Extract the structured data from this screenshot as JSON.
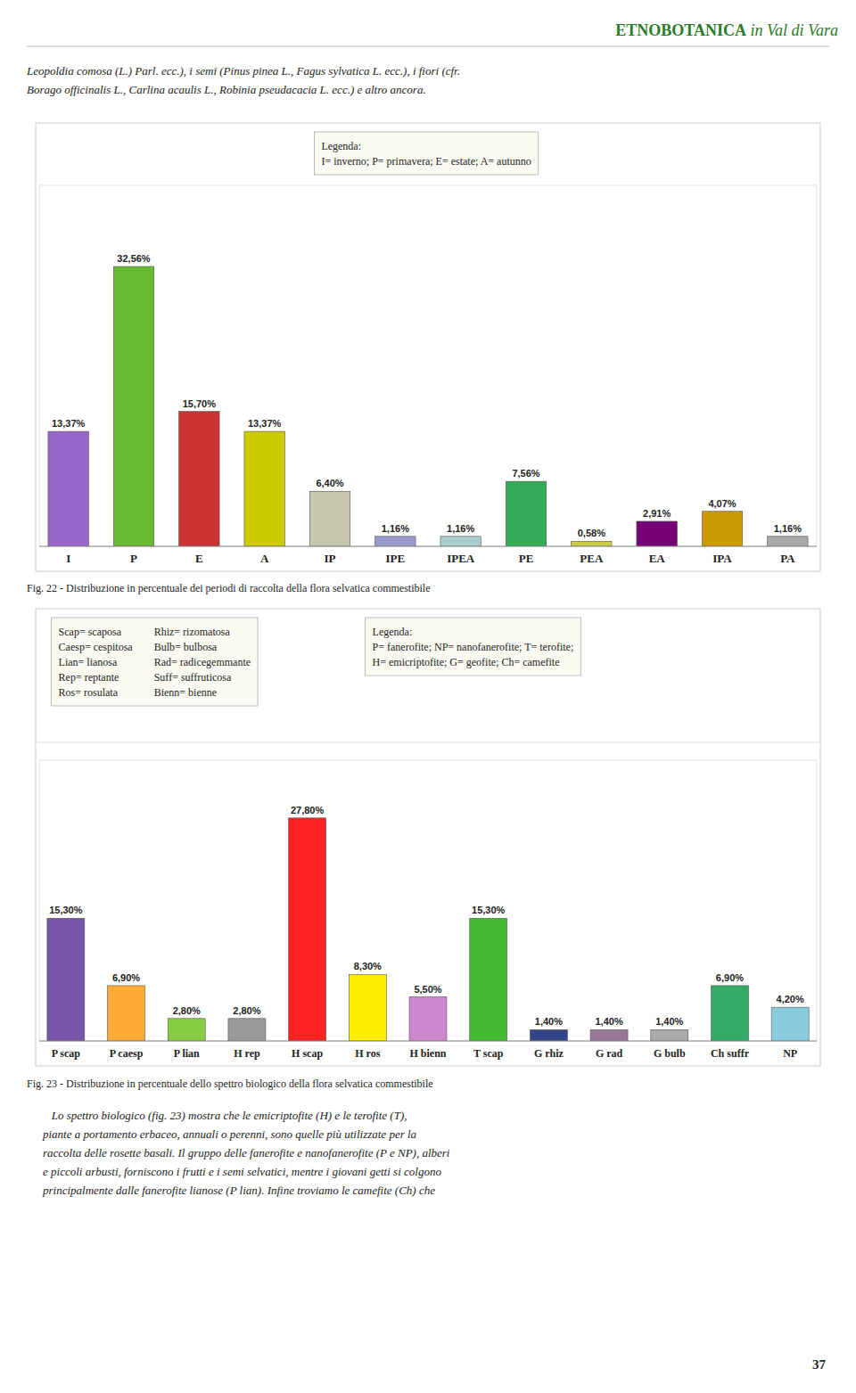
{
  "header": {
    "bold": "ETNOBOTANICA",
    "italic": " in Val di Vara"
  },
  "body_text_1": [
    "Leopoldia comosa (L.) Parl. ecc.), i semi (Pinus pinea L., Fagus sylvatica L. ecc.), i fiori (cfr.",
    "Borago officinalis L., Carlina acaulis L., Robinia pseudacacia L. ecc.) e altro ancora."
  ],
  "chart_data": [
    {
      "type": "bar",
      "title": "Fig. 22 - Distribuzione in percentuale dei periodi di raccolta della flora selvatica commestibile",
      "categories": [
        "I",
        "P",
        "E",
        "A",
        "IP",
        "IPE",
        "IPEA",
        "PE",
        "PEA",
        "EA",
        "IPA",
        "PA"
      ],
      "values": [
        13.37,
        32.56,
        15.7,
        13.37,
        6.4,
        1.16,
        1.16,
        7.56,
        0.58,
        2.91,
        4.07,
        1.16
      ],
      "value_labels": [
        "13,37%",
        "32,56%",
        "15,70%",
        "13,37%",
        "6,40%",
        "1,16%",
        "1,16%",
        "7,56%",
        "0,58%",
        "2,91%",
        "4,07%",
        "1,16%"
      ],
      "colors": [
        "#9966cc",
        "#66bb33",
        "#cc3333",
        "#cccc00",
        "#c8c8b0",
        "#9999cc",
        "#aacccc",
        "#33aa55",
        "#cccc44",
        "#770077",
        "#cc9900",
        "#aaaaaa"
      ],
      "ylim": [
        0,
        42
      ],
      "data_labels": true,
      "tick_labels": "x",
      "grid": false,
      "annotations": [
        [
          [
            "Legenda:"
          ],
          [
            "I= inverno; P= primavera; E= estate; A= autunno"
          ]
        ]
      ]
    },
    {
      "type": "bar",
      "title": "Fig. 23 - Distribuzione in percentuale dello spettro biologico della flora selvatica commestibile",
      "categories": [
        "P scap",
        "P caesp",
        "P lian",
        "H rep",
        "H scap",
        "H ros",
        "H bienn",
        "T scap",
        "G rhiz",
        "G rad",
        "G bulb",
        "Ch suffr",
        "NP"
      ],
      "values": [
        15.3,
        6.9,
        2.8,
        2.8,
        27.8,
        8.3,
        5.5,
        15.3,
        1.4,
        1.4,
        1.4,
        6.9,
        4.2
      ],
      "value_labels": [
        "15,30%",
        "6,90%",
        "2,80%",
        "2,80%",
        "27,80%",
        "8,30%",
        "5,50%",
        "15,30%",
        "1,40%",
        "1,40%",
        "1,40%",
        "6,90%",
        "4,20%"
      ],
      "colors": [
        "#7755aa",
        "#ffaa33",
        "#88cc44",
        "#999999",
        "#ff2222",
        "#ffee00",
        "#cc88cc",
        "#44bb33",
        "#334488",
        "#997799",
        "#aaaaaa",
        "#33aa66",
        "#88ccdd"
      ],
      "ylim": [
        0,
        35
      ],
      "data_labels": true,
      "tick_labels": "x",
      "grid": false,
      "annotations": [
        [
          [
            "Scap= scaposa",
            "Rhiz= rizomatosa"
          ],
          [
            "Caesp= cespitosa",
            "Bulb= bulbosa"
          ],
          [
            "Lian= lianosa",
            "Rad= radicegemmante"
          ],
          [
            "Rep= reptante",
            "Suff= suffruticosa"
          ],
          [
            "Ros= rosulata",
            "Bienn= bienne"
          ]
        ],
        [
          [
            "Legenda:"
          ],
          [
            "P= fanerofite; NP= nanofanerofite; T= terofite;"
          ],
          [
            "H= emicriptofite; G= geofite; Ch= camefite"
          ]
        ]
      ]
    }
  ],
  "body_text_2": [
    "   Lo spettro biologico (fig. 23) mostra che le emicriptofite (H) e le terofite (T),",
    "piante a portamento erbaceo, annuali o perenni, sono quelle più utilizzate per la",
    "raccolta delle rosette basali. Il gruppo delle fanerofite e nanofanerofite (P e NP), alberi",
    "e piccoli arbusti, forniscono i frutti e i semi selvatici, mentre i giovani getti si colgono",
    "principalmente dalle fanerofite lianose (P lian). Infine troviamo le camefite (Ch) che"
  ],
  "page_number": "37"
}
